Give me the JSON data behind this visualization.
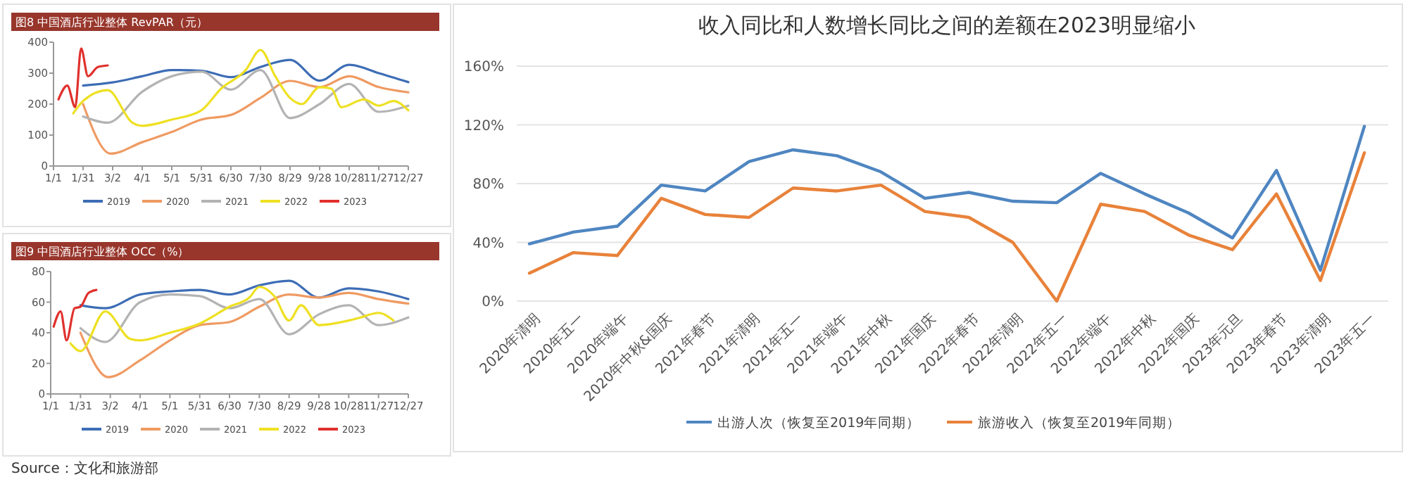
{
  "chart_data": [
    {
      "type": "line",
      "title": "图8 中国酒店行业整体 RevPAR（元）",
      "xlim": [
        "--01-01",
        "--12-27"
      ],
      "xticks": [
        {
          "value": "--01-01",
          "label": "1/1"
        },
        {
          "value": "--01-31",
          "label": "1/31"
        },
        {
          "value": "--03-02",
          "label": "3/2"
        },
        {
          "value": "--04-01",
          "label": "4/1"
        },
        {
          "value": "--05-01",
          "label": "5/1"
        },
        {
          "value": "--05-31",
          "label": "5/31"
        },
        {
          "value": "--06-30",
          "label": "6/30"
        },
        {
          "value": "--07-30",
          "label": "7/30"
        },
        {
          "value": "--08-29",
          "label": "8/29"
        },
        {
          "value": "--09-28",
          "label": "9/28"
        },
        {
          "value": "--10-28",
          "label": "10/28"
        },
        {
          "value": "--11-27",
          "label": "11/27"
        },
        {
          "value": "--12-27",
          "label": "12/27"
        }
      ],
      "ylim": [
        0,
        400
      ],
      "yticks": [
        0,
        100,
        200,
        300,
        400
      ],
      "legend": "bottom",
      "series": [
        {
          "name": "2019",
          "color": "#3d6db5",
          "x": [
            "--01-31",
            "--03-02",
            "--04-01",
            "--05-01",
            "--05-31",
            "--06-30",
            "--07-30",
            "--08-29",
            "--09-28",
            "--10-28",
            "--11-27",
            "--12-27"
          ],
          "values": [
            260,
            270,
            290,
            310,
            308,
            287,
            320,
            343,
            276,
            327,
            300,
            271
          ]
        },
        {
          "name": "2020",
          "color": "#ef9a62",
          "x": [
            "--01-31",
            "--02-28",
            "--04-01",
            "--05-01",
            "--05-31",
            "--06-30",
            "--07-30",
            "--08-29",
            "--09-28",
            "--10-28",
            "--11-27",
            "--12-27"
          ],
          "values": [
            200,
            40,
            77,
            110,
            150,
            165,
            220,
            275,
            255,
            290,
            255,
            238
          ]
        },
        {
          "name": "2021",
          "color": "#b3b3b3",
          "x": [
            "--01-31",
            "--02-25",
            "--04-01",
            "--05-01",
            "--05-31",
            "--06-30",
            "--07-30",
            "--08-29",
            "--09-28",
            "--10-28",
            "--11-27",
            "--12-27"
          ],
          "values": [
            160,
            140,
            240,
            290,
            305,
            247,
            310,
            155,
            200,
            265,
            175,
            195
          ]
        },
        {
          "name": "2022",
          "color": "#eee022",
          "x": [
            "--01-21",
            "--01-31",
            "--02-25",
            "--03-22",
            "--04-01",
            "--05-01",
            "--05-31",
            "--06-20",
            "--07-15",
            "--07-30",
            "--08-14",
            "--08-29",
            "--09-10",
            "--09-28",
            "--10-10",
            "--10-20",
            "--11-12",
            "--11-27",
            "--12-12",
            "--12-27"
          ],
          "values": [
            170,
            210,
            245,
            140,
            130,
            150,
            180,
            250,
            310,
            375,
            290,
            220,
            200,
            255,
            250,
            190,
            215,
            195,
            210,
            180
          ]
        },
        {
          "name": "2023",
          "color": "#e0302c",
          "x": [
            "--01-06",
            "--01-15",
            "--01-23",
            "--01-29",
            "--02-05",
            "--02-15",
            "--02-25"
          ],
          "values": [
            215,
            260,
            190,
            380,
            290,
            320,
            325
          ]
        }
      ]
    },
    {
      "type": "line",
      "title": "图9 中国酒店行业整体 OCC（%）",
      "xlim": [
        "--01-01",
        "--12-27"
      ],
      "xticks": [
        {
          "value": "--01-01",
          "label": "1/1"
        },
        {
          "value": "--01-31",
          "label": "1/31"
        },
        {
          "value": "--03-02",
          "label": "3/2"
        },
        {
          "value": "--04-01",
          "label": "4/1"
        },
        {
          "value": "--05-01",
          "label": "5/1"
        },
        {
          "value": "--05-31",
          "label": "5/31"
        },
        {
          "value": "--06-30",
          "label": "6/30"
        },
        {
          "value": "--07-30",
          "label": "7/30"
        },
        {
          "value": "--08-29",
          "label": "8/29"
        },
        {
          "value": "--09-28",
          "label": "9/28"
        },
        {
          "value": "--10-28",
          "label": "10/28"
        },
        {
          "value": "--11-27",
          "label": "11/27"
        },
        {
          "value": "--12-27",
          "label": "12/27"
        }
      ],
      "ylim": [
        0,
        80
      ],
      "yticks": [
        0,
        20,
        40,
        60,
        80
      ],
      "legend": "bottom",
      "series": [
        {
          "name": "2019",
          "color": "#3d6db5",
          "x": [
            "--01-31",
            "--02-25",
            "--04-01",
            "--05-01",
            "--05-31",
            "--06-30",
            "--07-30",
            "--08-29",
            "--09-28",
            "--10-28",
            "--11-27",
            "--12-27"
          ],
          "values": [
            58,
            56,
            65,
            67,
            68,
            65,
            71,
            74,
            63,
            69,
            67,
            62
          ]
        },
        {
          "name": "2020",
          "color": "#ef9a62",
          "x": [
            "--01-31",
            "--02-28",
            "--04-01",
            "--05-01",
            "--05-31",
            "--06-30",
            "--07-30",
            "--08-29",
            "--09-28",
            "--10-28",
            "--11-27",
            "--12-27"
          ],
          "values": [
            40,
            11,
            22,
            35,
            45,
            47,
            57,
            65,
            63,
            66,
            62,
            59
          ]
        },
        {
          "name": "2021",
          "color": "#b3b3b3",
          "x": [
            "--01-31",
            "--02-25",
            "--04-01",
            "--05-01",
            "--05-31",
            "--06-30",
            "--07-30",
            "--08-29",
            "--09-28",
            "--10-28",
            "--11-27",
            "--12-27"
          ],
          "values": [
            43,
            34,
            60,
            65,
            64,
            56,
            62,
            39,
            52,
            58,
            45,
            50
          ]
        },
        {
          "name": "2022",
          "color": "#eee022",
          "x": [
            "--01-21",
            "--01-31",
            "--02-25",
            "--03-22",
            "--04-01",
            "--05-01",
            "--05-31",
            "--06-30",
            "--07-20",
            "--07-30",
            "--08-14",
            "--08-29",
            "--09-10",
            "--09-28",
            "--10-28",
            "--11-09",
            "--11-27",
            "--12-12"
          ],
          "values": [
            33,
            28,
            54,
            36,
            35,
            40,
            46,
            57,
            63,
            70,
            64,
            48,
            58,
            45,
            48,
            50,
            53,
            48
          ]
        },
        {
          "name": "2023",
          "color": "#e0302c",
          "x": [
            "--01-04",
            "--01-11",
            "--01-17",
            "--01-25",
            "--01-31",
            "--02-08",
            "--02-16"
          ],
          "values": [
            44,
            54,
            35,
            56,
            57,
            66,
            68
          ]
        }
      ]
    },
    {
      "type": "line",
      "title": "收入同比和人数增长同比之间的差额在2023明显缩小",
      "categories": [
        "2020年清明",
        "2020年五一",
        "2020年端午",
        "2020年中秋&国庆",
        "2021年春节",
        "2021年清明",
        "2021年五一",
        "2021年端午",
        "2021年中秋",
        "2021年国庆",
        "2022年春节",
        "2022年清明",
        "2022年五一",
        "2022年端午",
        "2022年中秋",
        "2022年国庆",
        "2023年元旦",
        "2023年春节",
        "2023年清明",
        "2023年五一"
      ],
      "ylim": [
        0,
        160
      ],
      "yticks": [
        {
          "value": 0,
          "label": "0%"
        },
        {
          "value": 40,
          "label": "40%"
        },
        {
          "value": 80,
          "label": "80%"
        },
        {
          "value": 120,
          "label": "120%"
        },
        {
          "value": 160,
          "label": "160%"
        }
      ],
      "grid": "y",
      "legend": "bottom",
      "annotations": [
        "Source：文化和旅游部"
      ],
      "series": [
        {
          "name": "出游人次（恢复至2019年同期）",
          "color": "#4f86c1",
          "values": [
            39,
            47,
            51,
            79,
            75,
            95,
            103,
            99,
            88,
            70,
            74,
            68,
            67,
            87,
            73,
            60,
            43,
            89,
            21,
            119
          ]
        },
        {
          "name": "旅游收入（恢复至2019年同期）",
          "color": "#e8823a",
          "values": [
            19,
            33,
            31,
            70,
            59,
            57,
            77,
            75,
            79,
            61,
            57,
            40,
            0,
            66,
            61,
            45,
            35,
            73,
            14,
            101
          ]
        }
      ]
    }
  ]
}
